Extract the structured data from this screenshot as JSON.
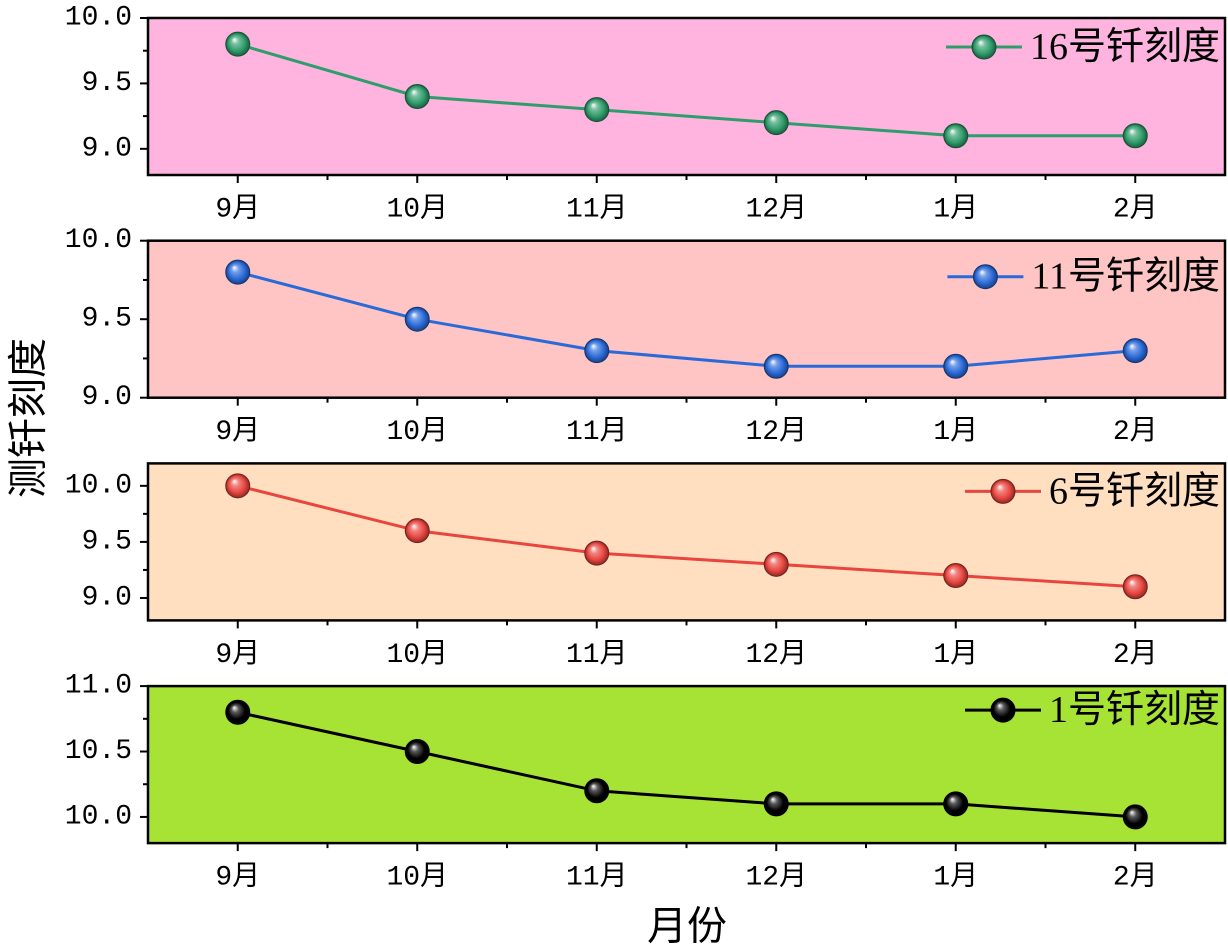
{
  "chart_data": {
    "type": "line",
    "xlabel": "月份",
    "ylabel": "测钎刻度",
    "categories": [
      "9月",
      "10月",
      "11月",
      "12月",
      "1月",
      "2月"
    ],
    "grid": false,
    "legend": "top-right",
    "panels": [
      {
        "background": "#FFB3DF",
        "ylim": [
          8.8,
          10.0
        ],
        "yticks": [
          "9.0",
          "9.5",
          "10.0"
        ],
        "series": [
          {
            "name": "16号钎刻度",
            "color": "#2F9C6B",
            "values": [
              9.8,
              9.4,
              9.3,
              9.2,
              9.1,
              9.1
            ]
          }
        ]
      },
      {
        "background": "#FFC4C4",
        "ylim": [
          9.0,
          10.0
        ],
        "yticks": [
          "9.0",
          "9.5",
          "10.0"
        ],
        "series": [
          {
            "name": "11号钎刻度",
            "color": "#2A6AD8",
            "values": [
              9.8,
              9.5,
              9.3,
              9.2,
              9.2,
              9.3
            ]
          }
        ]
      },
      {
        "background": "#FFDFBF",
        "ylim": [
          8.8,
          10.2
        ],
        "yticks": [
          "9.0",
          "9.5",
          "10.0"
        ],
        "series": [
          {
            "name": "6号钎刻度",
            "color": "#E8453F",
            "values": [
              10.0,
              9.6,
              9.4,
              9.3,
              9.2,
              9.1
            ]
          }
        ]
      },
      {
        "background": "#A6E334",
        "ylim": [
          9.8,
          11.0
        ],
        "yticks": [
          "10.0",
          "10.5",
          "11.0"
        ],
        "series": [
          {
            "name": "1号钎刻度",
            "color": "#000000",
            "values": [
              10.8,
              10.5,
              10.2,
              10.1,
              10.1,
              10.0
            ]
          }
        ]
      }
    ]
  }
}
